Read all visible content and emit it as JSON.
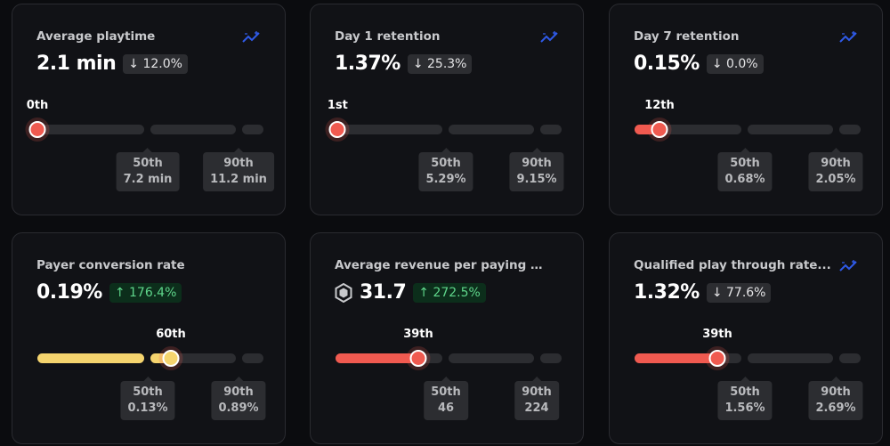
{
  "colors": {
    "red": "#f05a50",
    "yellow": "#f5d46e",
    "accent": "#2f5ae8"
  },
  "cards": [
    {
      "title": "Average playtime",
      "value": "2.1 min",
      "delta": "↓ 12.0%",
      "direction": "down",
      "icon": "sparkline-icon",
      "percentile_label": "0th",
      "percentile": 0,
      "p50_label": "50th",
      "p50_value": "7.2 min",
      "p90_label": "90th",
      "p90_value": "11.2 min",
      "color": "#f05a50"
    },
    {
      "title": "Day 1 retention",
      "value": "1.37%",
      "delta": "↓ 25.3%",
      "direction": "down",
      "icon": "sparkline-icon",
      "percentile_label": "1st",
      "percentile": 1,
      "p50_label": "50th",
      "p50_value": "5.29%",
      "p90_label": "90th",
      "p90_value": "9.15%",
      "color": "#f05a50"
    },
    {
      "title": "Day 7 retention",
      "value": "0.15%",
      "delta": "↓ 0.0%",
      "direction": "down",
      "icon": "sparkline-icon",
      "percentile_label": "12th",
      "percentile": 12,
      "p50_label": "50th",
      "p50_value": "0.68%",
      "p90_label": "90th",
      "p90_value": "2.05%",
      "color": "#f05a50"
    },
    {
      "title": "Payer conversion rate",
      "value": "0.19%",
      "delta": "↑ 176.4%",
      "direction": "up",
      "icon": "",
      "percentile_label": "60th",
      "percentile": 60,
      "p50_label": "50th",
      "p50_value": "0.13%",
      "p90_label": "90th",
      "p90_value": "0.89%",
      "color": "#f5d46e"
    },
    {
      "title": "Average revenue per paying users",
      "value": "31.7",
      "delta": "↑ 272.5%",
      "direction": "up",
      "icon": "robux-icon",
      "percentile_label": "39th",
      "percentile": 39,
      "p50_label": "50th",
      "p50_value": "46",
      "p90_label": "90th",
      "p90_value": "224",
      "color": "#f05a50"
    },
    {
      "title": "Qualified play through rate...",
      "value": "1.32%",
      "delta": "↓ 77.6%",
      "direction": "down",
      "icon": "sparkline-icon",
      "percentile_label": "39th",
      "percentile": 39,
      "p50_label": "50th",
      "p50_value": "1.56%",
      "p90_label": "90th",
      "p90_value": "2.69%",
      "color": "#f05a50"
    }
  ]
}
